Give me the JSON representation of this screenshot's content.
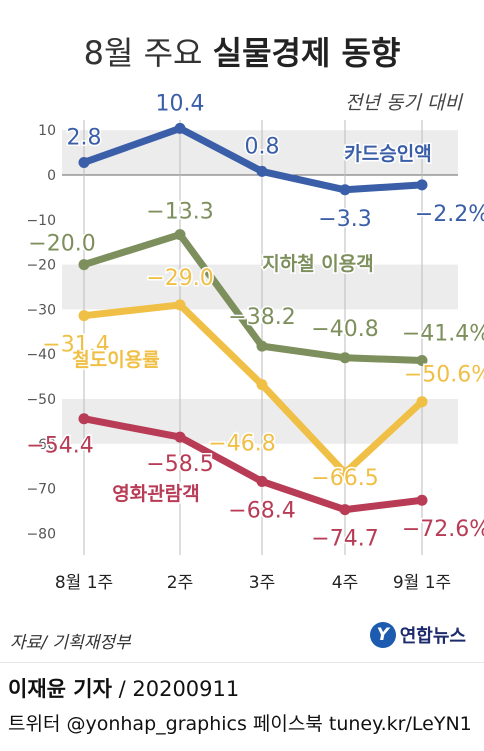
{
  "title_prefix": "8월 주요",
  "title_bold": "실물경제 동향",
  "subtitle": "전년 동기 대비",
  "source": "자료/ 기획재정부",
  "brand": "연합뉴스",
  "reporter_name": "이재윤 기자",
  "reporter_date": "/ 20200911",
  "social_line": "트위터 @yonhap_graphics  페이스북 tuney.kr/LeYN1",
  "chart_data": {
    "type": "line",
    "title": "8월 주요 실물경제 동향",
    "subtitle": "전년 동기 대비",
    "categories": [
      "8월 1주",
      "2주",
      "3주",
      "4주",
      "9월 1주"
    ],
    "ylim": [
      -85,
      12
    ],
    "yticks": [
      10,
      0,
      -10,
      -20,
      -30,
      -40,
      -50,
      -60,
      -70,
      -80
    ],
    "series": [
      {
        "name": "카드승인액",
        "color": "#3a5ea8",
        "values": [
          2.8,
          10.4,
          0.8,
          -3.3,
          -2.2
        ],
        "labels": [
          "2.8",
          "10.4",
          "0.8",
          "-3.3",
          "-2.2%"
        ]
      },
      {
        "name": "지하철 이용객",
        "color": "#7d8f5c",
        "values": [
          -20.0,
          -13.3,
          -38.2,
          -40.8,
          -41.4
        ],
        "labels": [
          "-20.0",
          "-13.3",
          "-38.2",
          "-40.8",
          "-41.4%"
        ]
      },
      {
        "name": "철도이용률",
        "color": "#f0bf45",
        "values": [
          -31.4,
          -29.0,
          -46.8,
          -66.5,
          -50.6
        ],
        "labels": [
          "-31.4",
          "-29.0",
          "-46.8",
          "-66.5",
          "-50.6%"
        ]
      },
      {
        "name": "영화관람객",
        "color": "#b83c55",
        "values": [
          -54.4,
          -58.5,
          -68.4,
          -74.7,
          -72.6
        ],
        "labels": [
          "-54.4",
          "-58.5",
          "-68.4",
          "-74.7",
          "-72.6%"
        ]
      }
    ],
    "grid": "alternating bands",
    "legend": "inline"
  }
}
